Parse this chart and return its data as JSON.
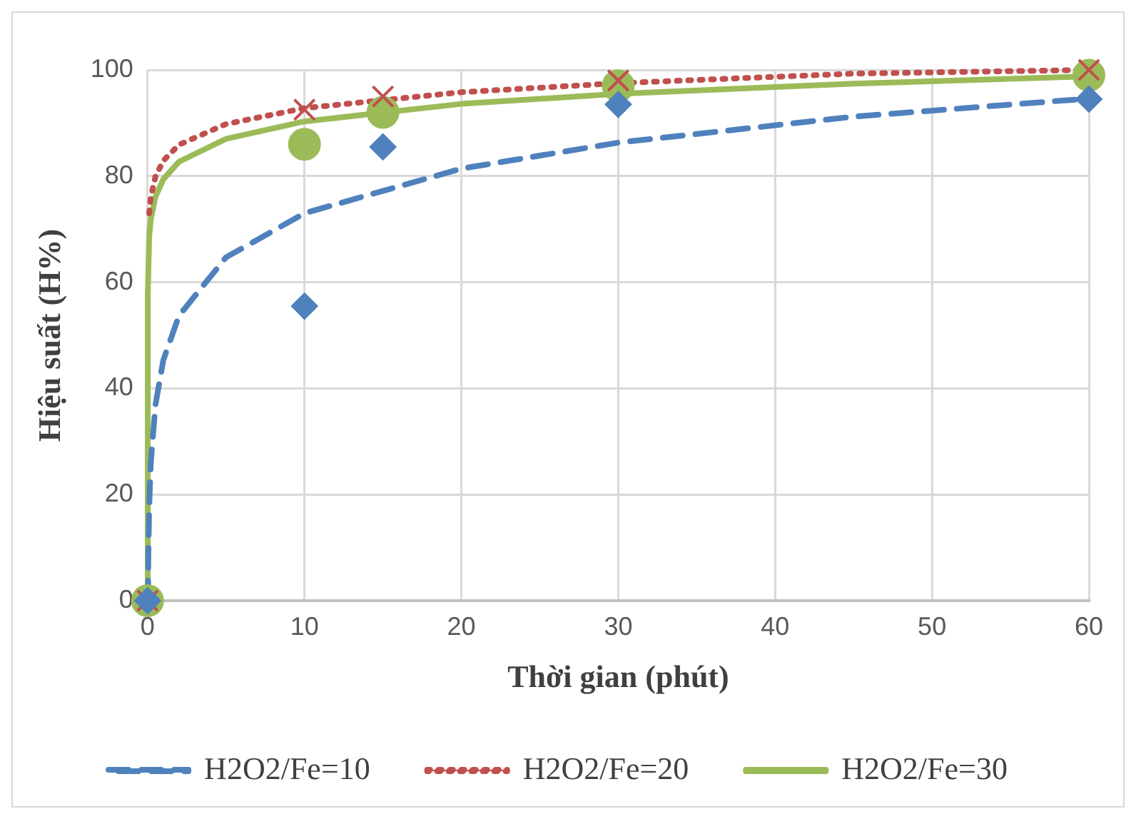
{
  "chart_data": {
    "type": "scatter",
    "xlabel": "Thời gian (phút)",
    "ylabel": "Hiệu suất (H%)",
    "xlim": [
      0,
      60
    ],
    "xticks": [
      0,
      10,
      20,
      30,
      40,
      50,
      60
    ],
    "ylim": [
      0,
      100
    ],
    "yticks": [
      0,
      20,
      40,
      60,
      80,
      100
    ],
    "grid": true,
    "legend": "bottom",
    "series": [
      {
        "type": "scatter",
        "color": "#4f81bd",
        "marker": "diamond",
        "x": [
          0,
          10,
          15,
          30,
          60
        ],
        "values": [
          0,
          55.5,
          85.5,
          93.5,
          94.5
        ]
      },
      {
        "type": "scatter",
        "color": "#c0504d",
        "marker": "cross",
        "x": [
          0,
          10,
          15,
          30,
          60
        ],
        "values": [
          0,
          92.5,
          95,
          98,
          100
        ]
      },
      {
        "type": "scatter",
        "color": "#9bbb59",
        "marker": "circle",
        "x": [
          0,
          10,
          15,
          30,
          60
        ],
        "values": [
          0,
          86,
          92,
          97,
          99
        ]
      },
      {
        "type": "line",
        "name": "H2O2/Fe=10",
        "color": "#4f81bd",
        "line_style": "dashed",
        "marker": "none",
        "x": [
          0.023,
          0.05,
          0.1,
          0.2,
          0.5,
          1,
          2,
          5,
          10,
          20,
          30,
          45,
          60
        ],
        "values": [
          0,
          9.2,
          17.6,
          25.9,
          36.9,
          45.3,
          53.7,
          64.7,
          73,
          81.4,
          86.3,
          91.2,
          94.6
        ]
      },
      {
        "type": "line",
        "name": "H2O2/Fe=20",
        "color": "#c0504d",
        "line_style": "dotted",
        "marker": "none",
        "x": [
          0.1,
          0.2,
          0.5,
          1,
          2,
          5,
          10,
          20,
          30,
          45,
          60
        ],
        "values": [
          73,
          76,
          79.9,
          82.9,
          85.9,
          89.8,
          92.8,
          95.8,
          97.5,
          99.3,
          100
        ]
      },
      {
        "type": "line",
        "name": "H2O2/Fe=30",
        "color": "#9bbb59",
        "line_style": "solid",
        "marker": "none",
        "x": [
          0,
          0.01,
          0.1,
          0.2,
          0.5,
          1,
          2,
          5,
          10,
          20,
          30,
          45,
          60
        ],
        "values": [
          0,
          57.6,
          68.5,
          71.8,
          76.1,
          79.4,
          82.7,
          87,
          90.3,
          93.6,
          95.5,
          97.4,
          98.8
        ]
      }
    ]
  }
}
